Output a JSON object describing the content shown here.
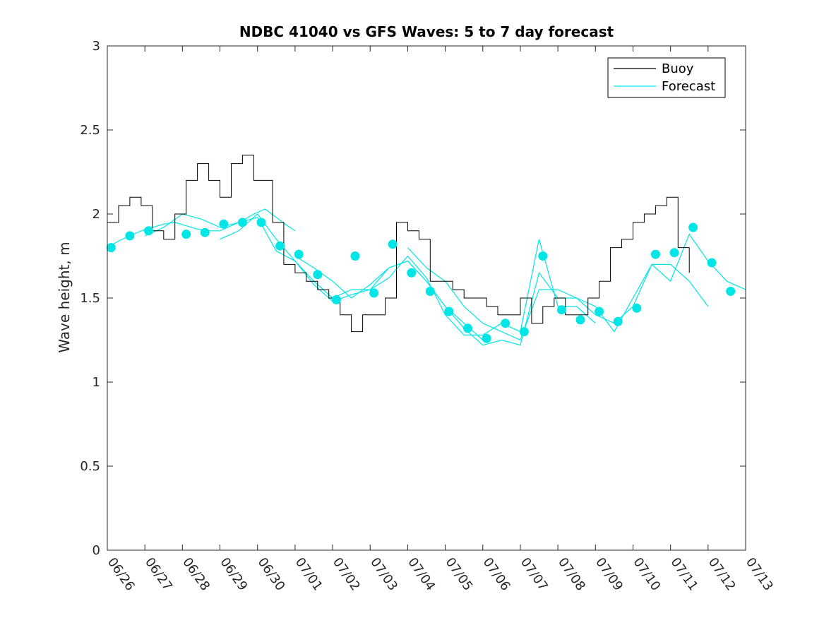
{
  "chart_data": {
    "type": "line",
    "title": "NDBC 41040 vs GFS Waves: 5 to 7 day forecast",
    "xlabel": "",
    "ylabel": "Wave height, m",
    "ylim": [
      0,
      3
    ],
    "yticks": [
      0,
      0.5,
      1,
      1.5,
      2,
      2.5,
      3
    ],
    "ytick_labels": [
      "0",
      "0.5",
      "1",
      "1.5",
      "2",
      "2.5",
      "3"
    ],
    "xlim": [
      "06/26",
      "07/13"
    ],
    "xtick_labels": [
      "06/26",
      "06/27",
      "06/28",
      "06/29",
      "06/30",
      "07/01",
      "07/02",
      "07/03",
      "07/04",
      "07/05",
      "07/06",
      "07/07",
      "07/08",
      "07/09",
      "07/10",
      "07/11",
      "07/12",
      "07/13"
    ],
    "grid": false,
    "legend": {
      "placement": "top-right",
      "entries": [
        "Buoy",
        "Forecast"
      ]
    },
    "colors": {
      "buoy": "#000000",
      "forecast": "#00e6e6",
      "axes": "#262626"
    },
    "series": [
      {
        "name": "Buoy",
        "x_days": [
          0.0,
          0.3,
          0.6,
          0.9,
          1.2,
          1.5,
          1.8,
          2.1,
          2.4,
          2.7,
          3.0,
          3.3,
          3.6,
          3.9,
          4.2,
          4.4,
          4.7,
          5.0,
          5.3,
          5.6,
          5.9,
          6.2,
          6.5,
          6.8,
          7.1,
          7.4,
          7.7,
          8.0,
          8.3,
          8.6,
          8.9,
          9.2,
          9.5,
          9.8,
          10.1,
          10.4,
          10.7,
          11.0,
          11.3,
          11.6,
          11.9,
          12.2,
          12.5,
          12.8,
          13.1,
          13.4,
          13.7,
          14.0,
          14.3,
          14.6,
          14.9,
          15.2,
          15.5,
          15.8,
          16.1,
          16.4
        ],
        "values": [
          1.95,
          2.05,
          2.1,
          2.05,
          1.9,
          1.85,
          2.0,
          2.2,
          2.3,
          2.2,
          2.1,
          2.3,
          2.35,
          2.2,
          2.2,
          1.95,
          1.7,
          1.65,
          1.6,
          1.55,
          1.5,
          1.4,
          1.3,
          1.4,
          1.4,
          1.5,
          1.95,
          1.9,
          1.85,
          1.6,
          1.6,
          1.55,
          1.5,
          1.5,
          1.45,
          1.4,
          1.4,
          1.5,
          1.35,
          1.45,
          1.5,
          1.4,
          1.4,
          1.5,
          1.6,
          1.8,
          1.85,
          1.95,
          2.0,
          2.05,
          2.1,
          1.8,
          1.65,
          null,
          null,
          null
        ]
      },
      {
        "name": "Forecast",
        "runs": [
          {
            "x_days": [
              0.0,
              0.3,
              0.6,
              0.9,
              1.2,
              1.5,
              1.8,
              2.1,
              2.4,
              2.7,
              3.0,
              3.3,
              3.6,
              3.9,
              4.2,
              4.5,
              4.8,
              5.0
            ],
            "values": [
              1.8,
              1.84,
              1.87,
              1.9,
              1.92,
              1.94,
              1.95,
              1.93,
              1.91,
              1.9,
              1.9,
              1.93,
              1.96,
              2.0,
              2.03,
              1.98,
              1.93,
              1.9
            ]
          },
          {
            "x_days": [
              1.0,
              1.5,
              2.0,
              2.5,
              3.0,
              3.5,
              4.0,
              4.5,
              5.0,
              5.5,
              6.0,
              6.5,
              7.0,
              7.5,
              8.0,
              8.5,
              9.0,
              9.5,
              10.0
            ],
            "values": [
              1.87,
              1.92,
              2.0,
              1.97,
              1.92,
              1.95,
              1.98,
              1.78,
              1.72,
              1.58,
              1.48,
              1.52,
              1.55,
              1.68,
              1.72,
              1.6,
              1.45,
              1.35,
              1.25
            ]
          },
          {
            "x_days": [
              3.0,
              3.5,
              4.0,
              4.5,
              5.0,
              5.5,
              6.0,
              6.5,
              7.0,
              7.5,
              8.0,
              8.5,
              9.0,
              9.5,
              10.0,
              10.5,
              11.0,
              11.5,
              12.0,
              12.5,
              13.0
            ],
            "values": [
              1.85,
              1.9,
              2.0,
              1.85,
              1.72,
              1.6,
              1.5,
              1.55,
              1.55,
              1.62,
              1.75,
              1.62,
              1.4,
              1.28,
              1.28,
              1.35,
              1.3,
              1.85,
              1.45,
              1.45,
              1.35
            ]
          },
          {
            "x_days": [
              5.0,
              5.5,
              6.0,
              6.5,
              7.0,
              7.5,
              8.0,
              8.5,
              9.0,
              9.5,
              10.0,
              10.5,
              11.0,
              11.5,
              12.0,
              12.5,
              13.0,
              13.5,
              14.0,
              14.5,
              15.0,
              15.5,
              16.0
            ],
            "values": [
              1.75,
              1.68,
              1.6,
              1.5,
              1.58,
              1.68,
              1.72,
              1.6,
              1.45,
              1.32,
              1.22,
              1.25,
              1.22,
              1.65,
              1.5,
              1.5,
              1.4,
              1.35,
              1.45,
              1.7,
              1.7,
              1.6,
              1.45
            ]
          },
          {
            "x_days": [
              8.0,
              8.5,
              9.0,
              9.5,
              10.0,
              10.5,
              11.0,
              11.5,
              12.0,
              12.5,
              13.0,
              13.5,
              14.0,
              14.5,
              15.0,
              15.5,
              16.0,
              16.5,
              17.0
            ],
            "values": [
              1.8,
              1.68,
              1.6,
              1.45,
              1.35,
              1.3,
              1.25,
              1.55,
              1.55,
              1.5,
              1.45,
              1.3,
              1.5,
              1.7,
              1.6,
              1.88,
              1.72,
              1.6,
              1.55
            ]
          }
        ],
        "markers": {
          "x_days": [
            0.1,
            0.6,
            1.1,
            2.1,
            2.6,
            3.1,
            3.6,
            4.1,
            4.6,
            5.1,
            5.6,
            6.1,
            6.6,
            7.1,
            7.6,
            8.1,
            8.6,
            9.1,
            9.6,
            10.1,
            10.6,
            11.1,
            11.6,
            12.1,
            12.6,
            13.1,
            13.6,
            14.1,
            14.6,
            15.1,
            15.6,
            16.1,
            16.6
          ],
          "values": [
            1.8,
            1.87,
            1.9,
            1.88,
            1.89,
            1.94,
            1.95,
            1.95,
            1.81,
            1.76,
            1.64,
            1.49,
            1.75,
            1.53,
            1.82,
            1.65,
            1.54,
            1.42,
            1.32,
            1.26,
            1.35,
            1.3,
            1.75,
            1.43,
            1.37,
            1.42,
            1.36,
            1.44,
            1.76,
            1.77,
            1.92,
            1.71,
            1.54
          ]
        }
      }
    ]
  }
}
